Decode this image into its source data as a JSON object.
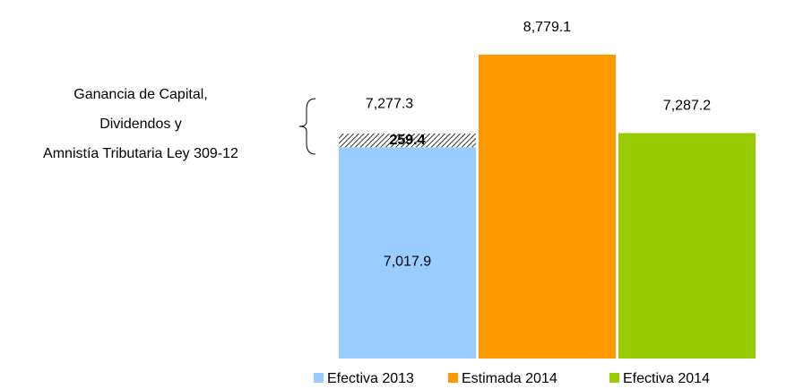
{
  "chart_data": {
    "type": "bar",
    "annotation": [
      "Ganancia de Capital,",
      "Dividendos y",
      "Amnistía Tributaria Ley 309-12"
    ],
    "ylim": [
      3000,
      9000
    ],
    "series": [
      {
        "name": "Efectiva 2013",
        "color": "#99ccff",
        "values": [
          7017.9,
          259.4
        ],
        "value_labels": [
          "7,017.9",
          "259.4"
        ],
        "total": 7277.3,
        "total_label": "7,277.3"
      },
      {
        "name": "Estimada 2014",
        "color": "#ff9900",
        "values": [
          8779.1
        ],
        "value_labels": [
          "8,779.1"
        ]
      },
      {
        "name": "Efectiva 2014",
        "color": "#99cc00",
        "values": [
          7287.2
        ],
        "value_labels": [
          "7,287.2"
        ]
      }
    ]
  }
}
